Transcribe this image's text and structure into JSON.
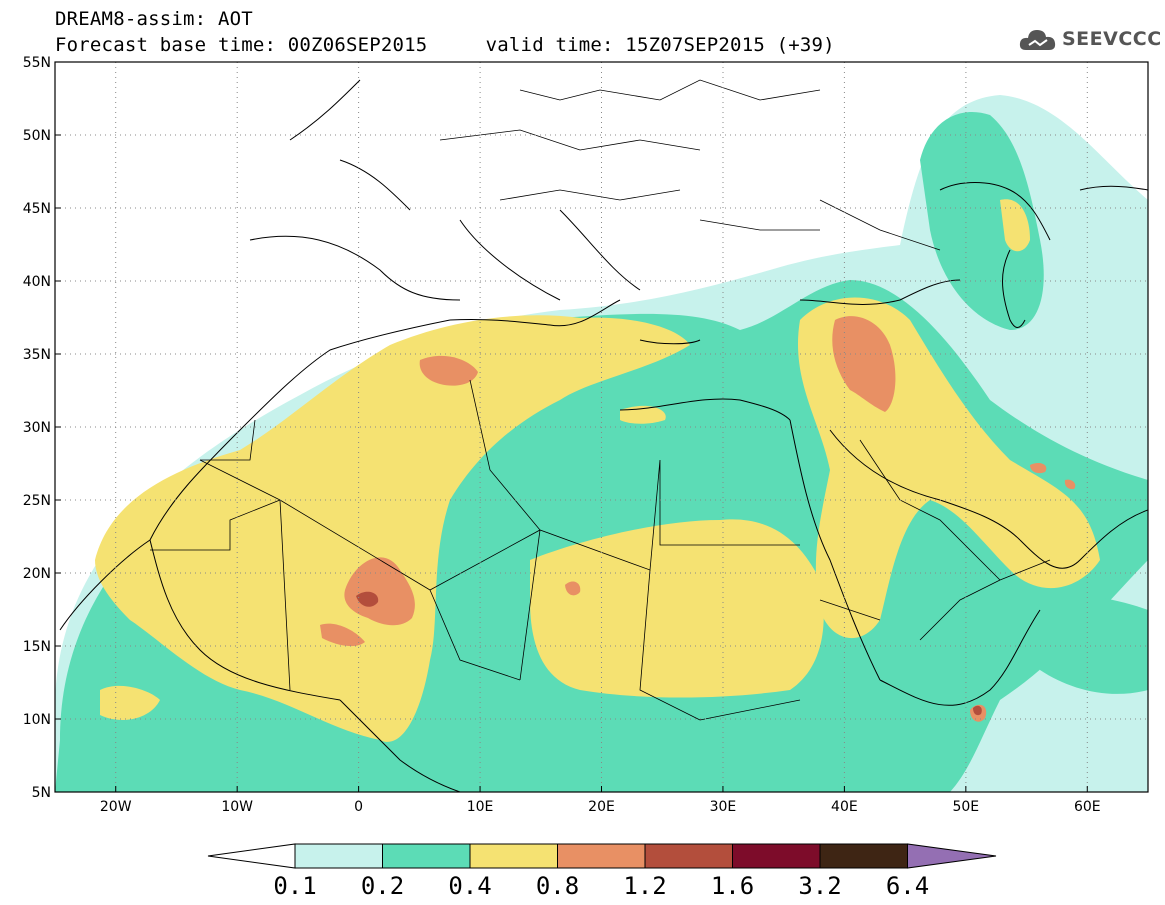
{
  "title": {
    "line1": "DREAM8-assim: AOT",
    "line2": "Forecast base time: 00Z06SEP2015     valid time: 15Z07SEP2015 (+39)"
  },
  "logo": {
    "text": "SEEVCCC",
    "icon": "cloud-icon",
    "color": "#555555"
  },
  "map": {
    "lon_range": [
      -25,
      65
    ],
    "lat_range": [
      5,
      55
    ],
    "lat_labels": [
      "55N",
      "50N",
      "45N",
      "40N",
      "35N",
      "30N",
      "25N",
      "20N",
      "15N",
      "10N",
      "5N"
    ],
    "lat_values": [
      55,
      50,
      45,
      40,
      35,
      30,
      25,
      20,
      15,
      10,
      5
    ],
    "lon_labels": [
      "20W",
      "10W",
      "0",
      "10E",
      "20E",
      "30E",
      "40E",
      "50E",
      "60E"
    ],
    "lon_values": [
      -20,
      -10,
      0,
      10,
      20,
      30,
      40,
      50,
      60
    ],
    "grid": true
  },
  "colorbar": {
    "labels": [
      "0.1",
      "0.2",
      "0.4",
      "0.8",
      "1.2",
      "1.6",
      "3.2",
      "6.4"
    ],
    "colors": [
      "#ffffff",
      "#c7f2ec",
      "#5cdcb6",
      "#f5e272",
      "#e89064",
      "#b34e3c",
      "#7d0c2a",
      "#3e2514",
      "#946fb3"
    ]
  }
}
